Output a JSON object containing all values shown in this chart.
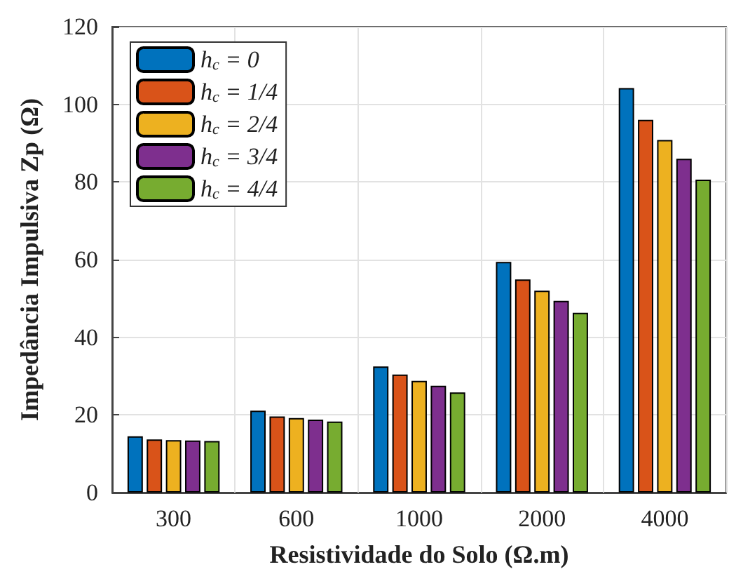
{
  "chart_data": {
    "type": "bar",
    "xlabel": "Resistividade do Solo (Ω.m)",
    "ylabel": "Impedância Impulsiva Zp (Ω)",
    "categories": [
      "300",
      "600",
      "1000",
      "2000",
      "4000"
    ],
    "series": [
      {
        "name": "h$_{c}$ = 0",
        "color": "#0072bd",
        "values": [
          14.5,
          21.1,
          32.5,
          59.4,
          104.2
        ]
      },
      {
        "name": "h$_{c}$ = 1/4",
        "color": "#d95319",
        "values": [
          13.7,
          19.6,
          30.4,
          54.9,
          96.0
        ]
      },
      {
        "name": "h$_{c}$ = 2/4",
        "color": "#edb120",
        "values": [
          13.5,
          19.2,
          28.8,
          52.0,
          90.8
        ]
      },
      {
        "name": "h$_{c}$ = 3/4",
        "color": "#7e2f8e",
        "values": [
          13.4,
          18.8,
          27.5,
          49.4,
          86.0
        ]
      },
      {
        "name": "h$_{c}$ = 4/4",
        "color": "#77ac30",
        "values": [
          13.3,
          18.3,
          25.8,
          46.3,
          80.6
        ]
      }
    ],
    "ylim": [
      0,
      120
    ],
    "yticks": [
      0,
      20,
      40,
      60,
      80,
      100,
      120
    ],
    "grid": true,
    "legend": "top left"
  }
}
